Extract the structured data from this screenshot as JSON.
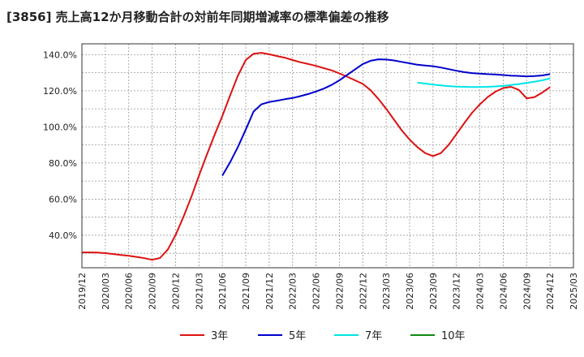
{
  "chart_data": {
    "type": "line",
    "title": "[3856]  売上高12か月移動合計の対前年同期増減率の標準偏差の推移",
    "xlabel": "",
    "ylabel": "",
    "ylim": [
      22,
      146
    ],
    "y_ticks": [
      40,
      60,
      80,
      100,
      120,
      140
    ],
    "y_tick_labels": [
      "40.0%",
      "60.0%",
      "80.0%",
      "100.0%",
      "120.0%",
      "140.0%"
    ],
    "x_tick_labels": [
      "2019/12",
      "2020/03",
      "2020/06",
      "2020/09",
      "2020/12",
      "2021/03",
      "2021/06",
      "2021/09",
      "2021/12",
      "2022/03",
      "2022/06",
      "2022/09",
      "2022/12",
      "2023/03",
      "2023/06",
      "2023/09",
      "2023/12",
      "2024/03",
      "2024/06",
      "2024/09",
      "2024/12",
      "2025/03"
    ],
    "grid": true,
    "legend_position": "bottom",
    "series": [
      {
        "name": "3年",
        "color": "#dd1111",
        "points": [
          [
            0,
            30.5
          ],
          [
            1,
            30.5
          ],
          [
            2,
            30.4
          ],
          [
            3,
            30.1
          ],
          [
            4,
            29.6
          ],
          [
            5,
            29.1
          ],
          [
            6,
            28.6
          ],
          [
            7,
            28
          ],
          [
            8,
            27.3
          ],
          [
            9,
            26.4
          ],
          [
            10,
            27.4
          ],
          [
            11,
            32
          ],
          [
            12,
            40
          ],
          [
            13,
            50
          ],
          [
            14,
            61
          ],
          [
            15,
            73
          ],
          [
            16,
            84.5
          ],
          [
            17,
            95.5
          ],
          [
            18,
            106
          ],
          [
            19,
            117.5
          ],
          [
            20,
            128.5
          ],
          [
            21,
            137
          ],
          [
            22,
            140.5
          ],
          [
            23,
            141
          ],
          [
            24,
            140.2
          ],
          [
            25,
            139.2
          ],
          [
            26,
            138.3
          ],
          [
            27,
            137
          ],
          [
            28,
            135.8
          ],
          [
            29,
            134.8
          ],
          [
            30,
            133.8
          ],
          [
            31,
            132.5
          ],
          [
            32,
            131.3
          ],
          [
            33,
            129.6
          ],
          [
            34,
            127.8
          ],
          [
            35,
            125.8
          ],
          [
            36,
            123.8
          ],
          [
            37,
            120.3
          ],
          [
            38,
            115.5
          ],
          [
            39,
            110
          ],
          [
            40,
            104
          ],
          [
            41,
            98
          ],
          [
            42,
            93
          ],
          [
            43,
            88.8
          ],
          [
            44,
            85.5
          ],
          [
            45,
            83.8
          ],
          [
            46,
            85.5
          ],
          [
            47,
            90
          ],
          [
            48,
            96
          ],
          [
            49,
            102
          ],
          [
            50,
            107.8
          ],
          [
            51,
            112.5
          ],
          [
            52,
            116.5
          ],
          [
            53,
            119.5
          ],
          [
            54,
            121.5
          ],
          [
            55,
            122.2
          ],
          [
            56,
            120.5
          ],
          [
            57,
            115.8
          ],
          [
            58,
            116.5
          ],
          [
            59,
            119
          ],
          [
            60,
            122
          ]
        ]
      },
      {
        "name": "5年",
        "color": "#0000cc",
        "points": [
          [
            18,
            73
          ],
          [
            19,
            80.5
          ],
          [
            20,
            89
          ],
          [
            21,
            98.5
          ],
          [
            22,
            108.5
          ],
          [
            23,
            112.5
          ],
          [
            24,
            113.8
          ],
          [
            25,
            114.5
          ],
          [
            26,
            115.3
          ],
          [
            27,
            116
          ],
          [
            28,
            117
          ],
          [
            29,
            118.2
          ],
          [
            30,
            119.6
          ],
          [
            31,
            121.2
          ],
          [
            32,
            123.2
          ],
          [
            33,
            125.8
          ],
          [
            34,
            128.8
          ],
          [
            35,
            131.8
          ],
          [
            36,
            134.8
          ],
          [
            37,
            136.6
          ],
          [
            38,
            137.4
          ],
          [
            39,
            137.3
          ],
          [
            40,
            136.8
          ],
          [
            41,
            136
          ],
          [
            42,
            135.2
          ],
          [
            43,
            134.4
          ],
          [
            44,
            134
          ],
          [
            45,
            133.6
          ],
          [
            46,
            132.9
          ],
          [
            47,
            132
          ],
          [
            48,
            131.1
          ],
          [
            49,
            130.3
          ],
          [
            50,
            129.8
          ],
          [
            51,
            129.5
          ],
          [
            52,
            129.2
          ],
          [
            53,
            129
          ],
          [
            54,
            128.7
          ],
          [
            55,
            128.4
          ],
          [
            56,
            128.2
          ],
          [
            57,
            128
          ],
          [
            58,
            128.1
          ],
          [
            59,
            128.5
          ],
          [
            60,
            129.2
          ]
        ]
      },
      {
        "name": "7年",
        "color": "#00e5e5",
        "points": [
          [
            43,
            124.5
          ],
          [
            44,
            124
          ],
          [
            45,
            123.4
          ],
          [
            46,
            123
          ],
          [
            47,
            122.6
          ],
          [
            48,
            122.3
          ],
          [
            49,
            122.2
          ],
          [
            50,
            122.1
          ],
          [
            51,
            122.1
          ],
          [
            52,
            122.2
          ],
          [
            53,
            122.4
          ],
          [
            54,
            122.7
          ],
          [
            55,
            123.2
          ],
          [
            56,
            123.7
          ],
          [
            57,
            124.4
          ],
          [
            58,
            125
          ],
          [
            59,
            125.8
          ],
          [
            60,
            126.8
          ]
        ]
      },
      {
        "name": "10年",
        "color": "#118811",
        "points": []
      }
    ]
  }
}
